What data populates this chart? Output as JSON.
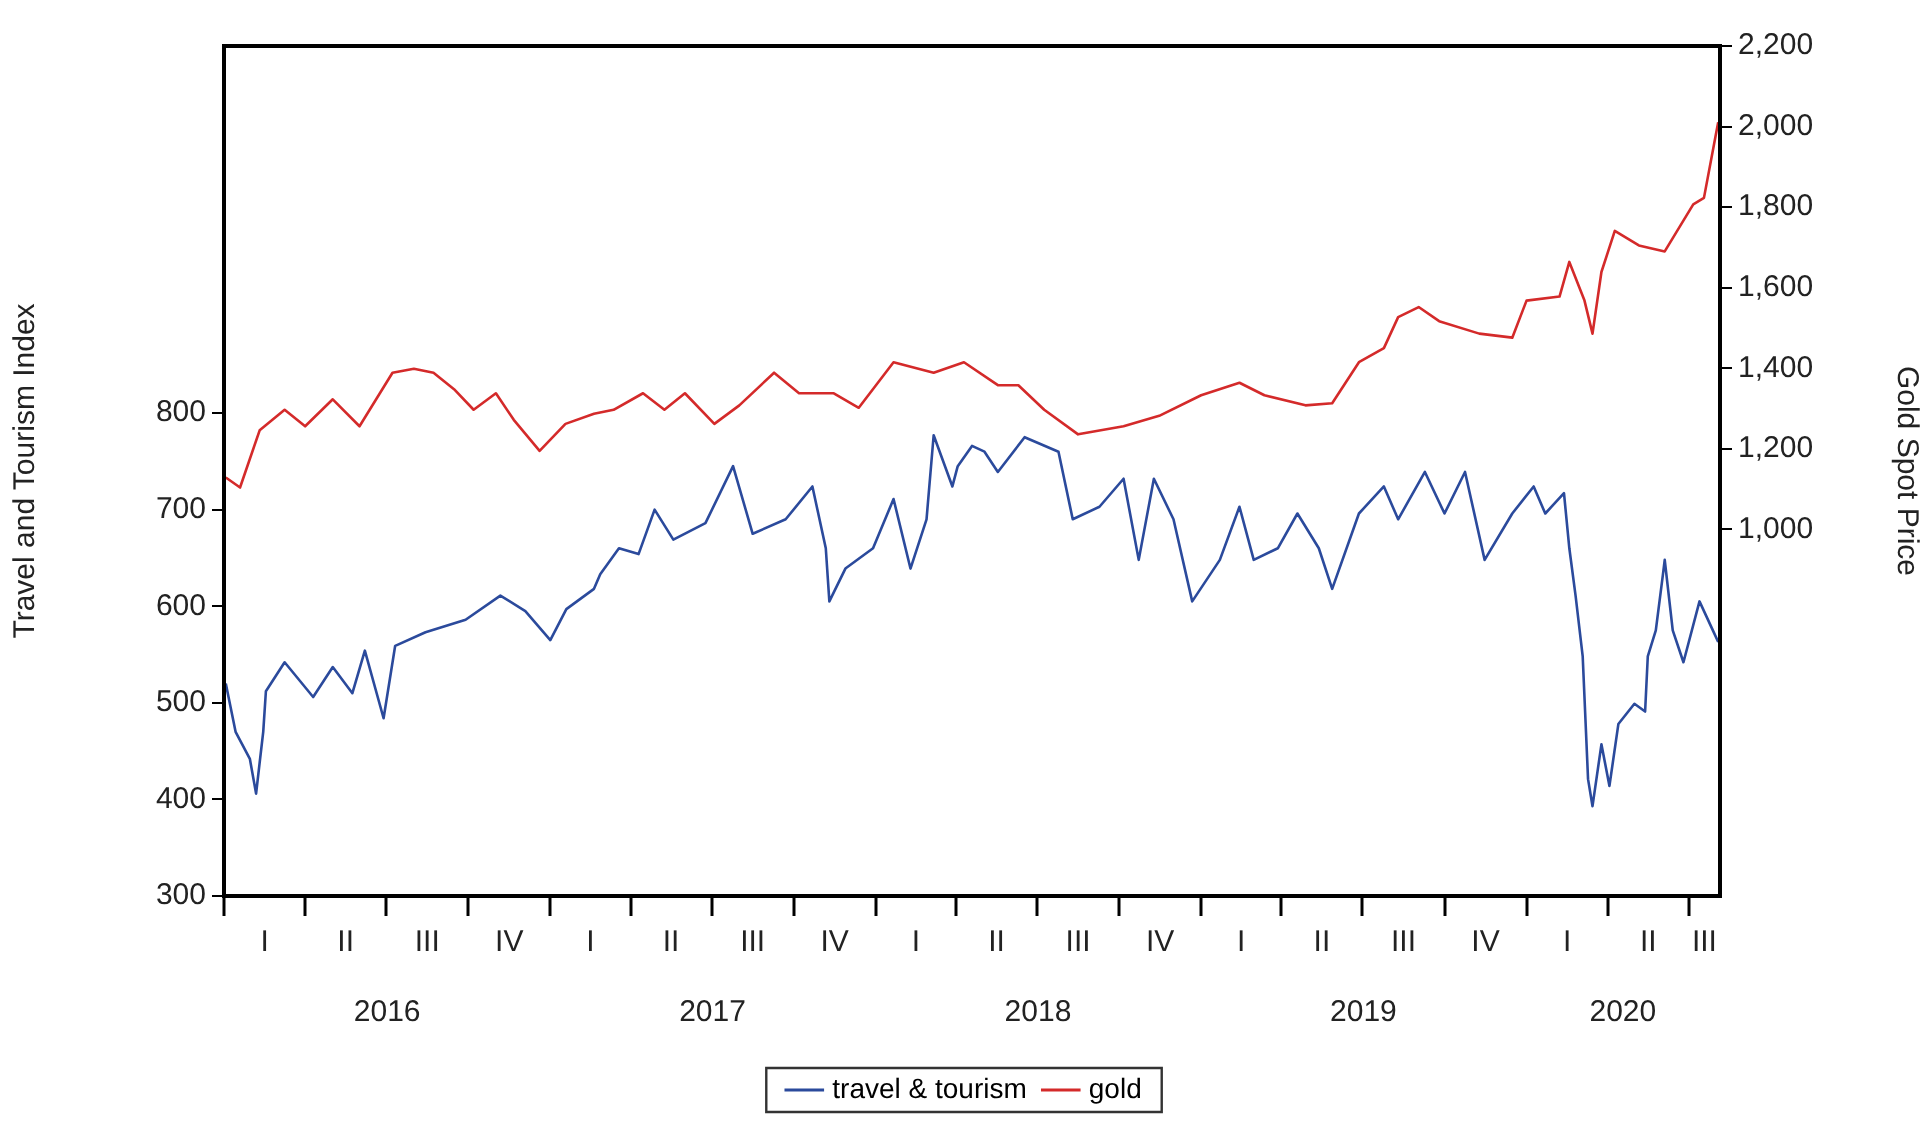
{
  "chart_data": {
    "type": "line",
    "ylabel": "Travel and Tourism Index",
    "y2label": "Gold Spot Price",
    "xlim": [
      "2016-01-01",
      "2020-08-05"
    ],
    "xticks": [
      {
        "value": "2016-01-01",
        "label": null
      },
      {
        "value": "2016-04-01",
        "label": null
      },
      {
        "value": "2016-07-01",
        "label": null
      },
      {
        "value": "2016-10-01",
        "label": null
      },
      {
        "value": "2017-01-01",
        "label": null
      },
      {
        "value": "2017-04-01",
        "label": null
      },
      {
        "value": "2017-07-01",
        "label": null
      },
      {
        "value": "2017-10-01",
        "label": null
      },
      {
        "value": "2018-01-01",
        "label": null
      },
      {
        "value": "2018-04-01",
        "label": null
      },
      {
        "value": "2018-07-01",
        "label": null
      },
      {
        "value": "2018-10-01",
        "label": null
      },
      {
        "value": "2019-01-01",
        "label": null
      },
      {
        "value": "2019-04-01",
        "label": null
      },
      {
        "value": "2019-07-01",
        "label": null
      },
      {
        "value": "2019-10-01",
        "label": null
      },
      {
        "value": "2020-01-01",
        "label": null
      },
      {
        "value": "2020-04-01",
        "label": null
      },
      {
        "value": "2020-07-01",
        "label": null
      },
      {
        "value": "2016-07-02",
        "label": "2016"
      },
      {
        "value": "2017-07-02",
        "label": "2017"
      },
      {
        "value": "2018-07-02",
        "label": "2018"
      },
      {
        "value": "2019-07-02",
        "label": "2019"
      },
      {
        "value": "2020-04-18",
        "label": "2020"
      }
    ],
    "annotations": [
      "I",
      "II",
      "III",
      "IV",
      "I",
      "II",
      "III",
      "IV",
      "I",
      "II",
      "III",
      "IV",
      "I",
      "II",
      "III",
      "IV",
      "I",
      "II",
      "III"
    ],
    "ylim": [
      300,
      1180
    ],
    "yticks": [
      300,
      400,
      500,
      600,
      700,
      800
    ],
    "y2lim": [
      90,
      2200
    ],
    "y2ticks": [
      {
        "value": 1000,
        "label": "1,000"
      },
      {
        "value": 1200,
        "label": "1,200"
      },
      {
        "value": 1400,
        "label": "1,400"
      },
      {
        "value": 1600,
        "label": "1,600"
      },
      {
        "value": 1800,
        "label": "1,800"
      },
      {
        "value": 2000,
        "label": "2,000"
      },
      {
        "value": 2200,
        "label": "2,200"
      }
    ],
    "grid": false,
    "legend": "bottom",
    "marker": "none",
    "line_style": "solid",
    "series": [
      {
        "name": "travel & tourism",
        "color": "#2b4a9c",
        "axis": "y",
        "x": [
          "2016-01-03",
          "2016-01-14",
          "2016-01-30",
          "2016-02-06",
          "2016-02-10",
          "2016-02-14",
          "2016-02-17",
          "2016-03-09",
          "2016-04-10",
          "2016-05-02",
          "2016-05-24",
          "2016-06-07",
          "2016-06-28",
          "2016-07-11",
          "2016-08-14",
          "2016-09-28",
          "2016-11-06",
          "2016-12-04",
          "2017-01-01",
          "2017-01-19",
          "2017-02-19",
          "2017-02-26",
          "2017-03-19",
          "2017-04-10",
          "2017-04-28",
          "2017-05-19",
          "2017-06-24",
          "2017-07-25",
          "2017-08-16",
          "2017-09-22",
          "2017-10-22",
          "2017-11-06",
          "2017-11-10",
          "2017-11-28",
          "2017-12-29",
          "2018-01-21",
          "2018-02-09",
          "2018-02-27",
          "2018-03-07",
          "2018-03-28",
          "2018-04-03",
          "2018-04-19",
          "2018-05-03",
          "2018-05-18",
          "2018-06-17",
          "2018-07-25",
          "2018-08-10",
          "2018-09-09",
          "2018-10-06",
          "2018-10-23",
          "2018-11-09",
          "2018-12-01",
          "2018-12-22",
          "2019-01-22",
          "2019-02-13",
          "2019-03-01",
          "2019-03-28",
          "2019-04-19",
          "2019-05-13",
          "2019-05-28",
          "2019-06-27",
          "2019-07-25",
          "2019-08-10",
          "2019-09-09",
          "2019-10-01",
          "2019-10-24",
          "2019-11-15",
          "2019-12-16",
          "2020-01-09",
          "2020-01-22",
          "2020-02-12",
          "2020-02-18",
          "2020-02-25",
          "2020-03-04",
          "2020-03-10",
          "2020-03-15",
          "2020-03-25",
          "2020-04-03",
          "2020-04-13",
          "2020-05-01",
          "2020-05-13",
          "2020-05-16",
          "2020-05-25",
          "2020-06-02",
          "2020-06-04",
          "2020-06-13",
          "2020-06-25",
          "2020-07-13",
          "2020-07-28",
          "2020-08-03"
        ],
        "values": [
          520,
          470,
          442,
          406,
          438,
          470,
          512,
          542,
          506,
          537,
          510,
          554,
          484,
          559,
          573,
          586,
          611,
          595,
          565,
          597,
          618,
          633,
          660,
          654,
          700,
          669,
          686,
          745,
          675,
          690,
          724,
          660,
          605,
          639,
          660,
          711,
          639,
          690,
          777,
          724,
          745,
          766,
          760,
          739,
          775,
          760,
          690,
          703,
          732,
          648,
          732,
          690,
          605,
          648,
          703,
          648,
          660,
          696,
          660,
          618,
          696,
          724,
          690,
          739,
          696,
          739,
          648,
          696,
          724,
          696,
          717,
          660,
          611,
          548,
          421,
          393,
          457,
          414,
          478,
          499,
          491,
          548,
          575,
          633,
          648,
          575,
          542,
          605,
          575,
          563
        ]
      },
      {
        "name": "gold",
        "color": "#d42a2a",
        "axis": "y2",
        "x": [
          "2016-01-03",
          "2016-01-19",
          "2016-02-10",
          "2016-03-09",
          "2016-04-01",
          "2016-05-02",
          "2016-06-01",
          "2016-07-08",
          "2016-08-01",
          "2016-08-23",
          "2016-09-15",
          "2016-10-07",
          "2016-11-01",
          "2016-11-21",
          "2016-12-20",
          "2017-01-18",
          "2017-02-19",
          "2017-03-13",
          "2017-04-15",
          "2017-05-09",
          "2017-06-01",
          "2017-07-04",
          "2017-08-01",
          "2017-09-09",
          "2017-10-07",
          "2017-11-15",
          "2017-12-13",
          "2018-01-21",
          "2018-03-07",
          "2018-04-10",
          "2018-05-18",
          "2018-06-10",
          "2018-07-09",
          "2018-08-16",
          "2018-10-06",
          "2018-11-15",
          "2019-01-01",
          "2019-02-13",
          "2019-03-13",
          "2019-04-28",
          "2019-05-28",
          "2019-06-27",
          "2019-07-25",
          "2019-08-10",
          "2019-09-02",
          "2019-09-25",
          "2019-11-09",
          "2019-12-16",
          "2020-01-01",
          "2020-02-07",
          "2020-02-18",
          "2020-03-06",
          "2020-03-15",
          "2020-03-25",
          "2020-04-09",
          "2020-05-06",
          "2020-06-04",
          "2020-07-06",
          "2020-07-18",
          "2020-07-31",
          "2020-08-03"
        ],
        "values": [
          1129,
          1104,
          1246,
          1297,
          1256,
          1323,
          1256,
          1389,
          1399,
          1389,
          1348,
          1297,
          1338,
          1272,
          1195,
          1262,
          1287,
          1297,
          1338,
          1297,
          1338,
          1262,
          1308,
          1389,
          1338,
          1338,
          1302,
          1415,
          1389,
          1415,
          1358,
          1358,
          1297,
          1236,
          1256,
          1282,
          1333,
          1364,
          1333,
          1308,
          1313,
          1415,
          1450,
          1527,
          1552,
          1517,
          1486,
          1476,
          1568,
          1578,
          1664,
          1568,
          1486,
          1639,
          1741,
          1705,
          1690,
          1807,
          1823,
          1976,
          2011
        ]
      }
    ]
  }
}
